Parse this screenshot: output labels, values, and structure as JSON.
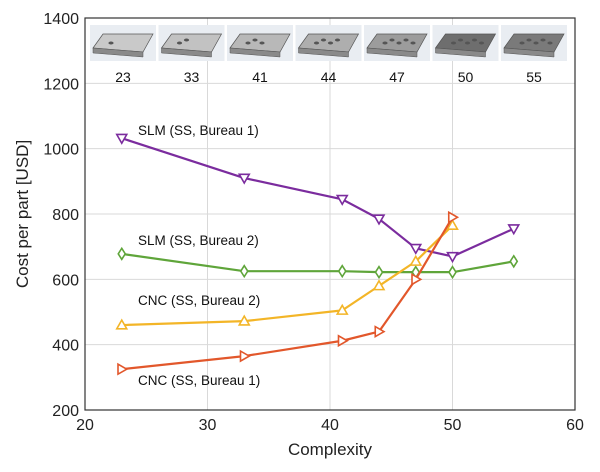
{
  "chart_data": {
    "type": "line",
    "xlabel": "Complexity",
    "ylabel": "Cost per part [USD]",
    "xlim": [
      20,
      60
    ],
    "ylim": [
      200,
      1400
    ],
    "xticks": [
      20,
      30,
      40,
      50,
      60
    ],
    "yticks": [
      200,
      400,
      600,
      800,
      1000,
      1200,
      1400
    ],
    "grid": true,
    "series": [
      {
        "name": "SLM (SS, Bureau 1)",
        "color": "#7B2C9E",
        "marker": "triangle-down",
        "x": [
          23,
          33,
          41,
          44,
          47,
          50,
          55
        ],
        "y": [
          1032,
          910,
          845,
          785,
          695,
          670,
          755
        ]
      },
      {
        "name": "SLM (SS, Bureau 2)",
        "color": "#5FA53A",
        "marker": "diamond",
        "x": [
          23,
          33,
          41,
          44,
          47,
          50,
          55
        ],
        "y": [
          678,
          625,
          625,
          622,
          622,
          622,
          655
        ]
      },
      {
        "name": "CNC (SS, Bureau 2)",
        "color": "#F3B527",
        "marker": "triangle-up",
        "x": [
          23,
          33,
          41,
          44,
          47,
          50
        ],
        "y": [
          460,
          472,
          505,
          580,
          655,
          765
        ]
      },
      {
        "name": "CNC (SS, Bureau 1)",
        "color": "#E2572B",
        "marker": "triangle-right",
        "x": [
          23,
          33,
          41,
          44,
          47,
          50
        ],
        "y": [
          325,
          365,
          412,
          440,
          600,
          790
        ]
      }
    ],
    "thumbnail_labels": [
      "23",
      "33",
      "41",
      "44",
      "47",
      "50",
      "55"
    ]
  }
}
